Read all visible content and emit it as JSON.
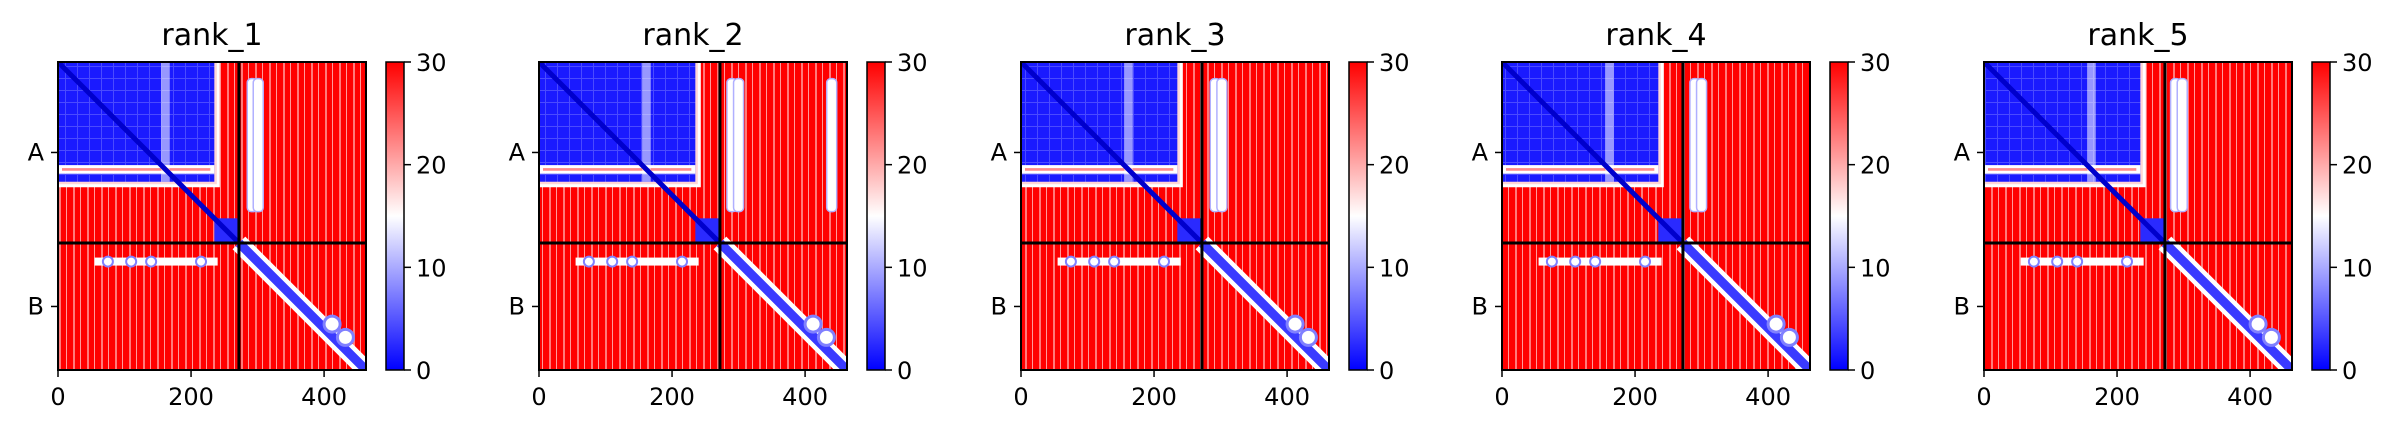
{
  "chart_data": [
    {
      "type": "heatmap",
      "title": "rank_1",
      "x_ticks": [
        0,
        200,
        400
      ],
      "xlim": [
        0,
        463
      ],
      "chain_boundary": 272,
      "row_labels": [
        "A",
        "B"
      ],
      "colorbar": {
        "ticks": [
          0,
          10,
          20,
          30
        ],
        "range": [
          0,
          30
        ],
        "colors": [
          "#0000ff",
          "#ffffff",
          "#ff0000"
        ]
      },
      "low_cols": [
        292,
        301
      ]
    },
    {
      "type": "heatmap",
      "title": "rank_2",
      "x_ticks": [
        0,
        200,
        400
      ],
      "xlim": [
        0,
        463
      ],
      "chain_boundary": 272,
      "row_labels": [
        "A",
        "B"
      ],
      "colorbar": {
        "ticks": [
          0,
          10,
          20,
          30
        ],
        "range": [
          0,
          30
        ],
        "colors": [
          "#0000ff",
          "#ffffff",
          "#ff0000"
        ]
      },
      "low_cols": [
        290,
        300,
        440
      ]
    },
    {
      "type": "heatmap",
      "title": "rank_3",
      "x_ticks": [
        0,
        200,
        400
      ],
      "xlim": [
        0,
        463
      ],
      "chain_boundary": 272,
      "row_labels": [
        "A",
        "B"
      ],
      "colorbar": {
        "ticks": [
          0,
          10,
          20,
          30
        ],
        "range": [
          0,
          30
        ],
        "colors": [
          "#0000ff",
          "#ffffff",
          "#ff0000"
        ]
      },
      "low_cols": [
        292,
        302
      ]
    },
    {
      "type": "heatmap",
      "title": "rank_4",
      "x_ticks": [
        0,
        200,
        400
      ],
      "xlim": [
        0,
        463
      ],
      "chain_boundary": 272,
      "row_labels": [
        "A",
        "B"
      ],
      "colorbar": {
        "ticks": [
          0,
          10,
          20,
          30
        ],
        "range": [
          0,
          30
        ],
        "colors": [
          "#0000ff",
          "#ffffff",
          "#ff0000"
        ]
      },
      "low_cols": [
        290,
        300
      ]
    },
    {
      "type": "heatmap",
      "title": "rank_5",
      "x_ticks": [
        0,
        200,
        400
      ],
      "xlim": [
        0,
        463
      ],
      "chain_boundary": 272,
      "row_labels": [
        "A",
        "B"
      ],
      "colorbar": {
        "ticks": [
          0,
          10,
          20,
          30
        ],
        "range": [
          0,
          30
        ],
        "colors": [
          "#0000ff",
          "#ffffff",
          "#ff0000"
        ]
      },
      "low_cols": [
        288,
        298
      ]
    }
  ]
}
